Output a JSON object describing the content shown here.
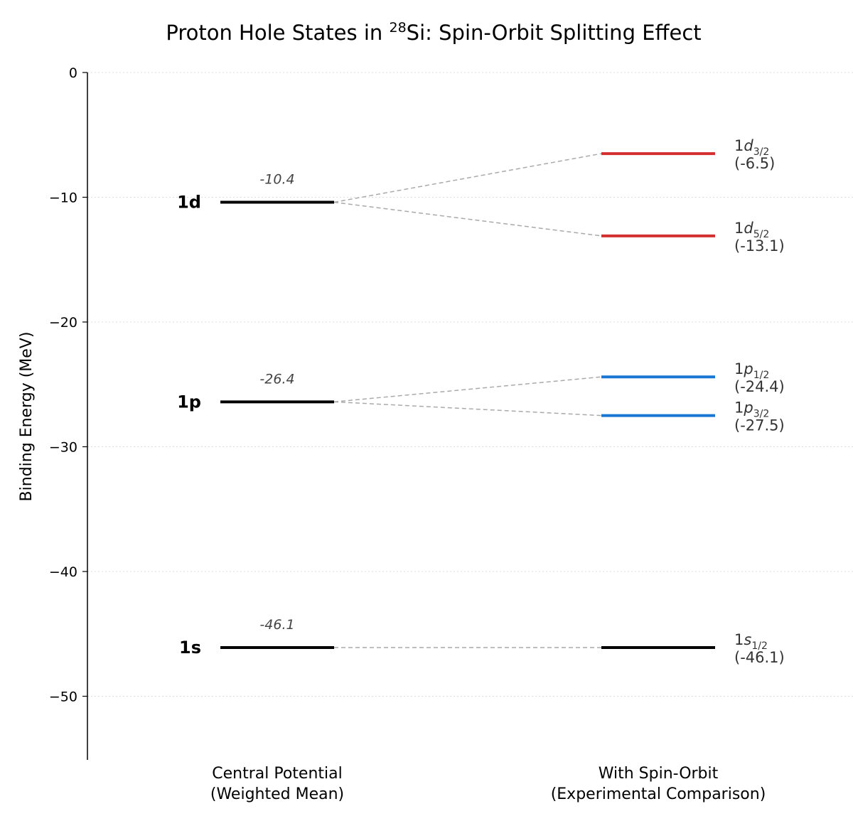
{
  "chart_data": {
    "type": "level-diagram",
    "title_prefix": "Proton Hole States in ",
    "title_superscript": "28",
    "title_suffix": "Si: Spin-Orbit Splitting Effect",
    "ylabel": "Binding Energy (MeV)",
    "ylim": [
      -55,
      0
    ],
    "yticks": [
      0,
      -10,
      -20,
      -30,
      -40,
      -50
    ],
    "ytick_labels": [
      "0",
      "−10",
      "−20",
      "−30",
      "−40",
      "−50"
    ],
    "grid": true,
    "columns": [
      {
        "line1": "Central Potential",
        "line2": "(Weighted Mean)"
      },
      {
        "line1": "With Spin-Orbit",
        "line2": "(Experimental Comparison)"
      }
    ],
    "central_levels": [
      {
        "name": "1d",
        "energy": -10.4,
        "value_label": "-10.4",
        "color": "#000000"
      },
      {
        "name": "1p",
        "energy": -26.4,
        "value_label": "-26.4",
        "color": "#000000"
      },
      {
        "name": "1s",
        "energy": -46.1,
        "value_label": "-46.1",
        "color": "#000000"
      }
    ],
    "split_levels": [
      {
        "parent": "1d",
        "prefix": "1",
        "letter": "d",
        "subscript": "3/2",
        "energy": -6.5,
        "value_label": "(-6.5)",
        "color": "#d32f2f"
      },
      {
        "parent": "1d",
        "prefix": "1",
        "letter": "d",
        "subscript": "5/2",
        "energy": -13.1,
        "value_label": "(-13.1)",
        "color": "#d32f2f"
      },
      {
        "parent": "1p",
        "prefix": "1",
        "letter": "p",
        "subscript": "1/2",
        "energy": -24.4,
        "value_label": "(-24.4)",
        "color": "#1976d2"
      },
      {
        "parent": "1p",
        "prefix": "1",
        "letter": "p",
        "subscript": "3/2",
        "energy": -27.5,
        "value_label": "(-27.5)",
        "color": "#1976d2"
      },
      {
        "parent": "1s",
        "prefix": "1",
        "letter": "s",
        "subscript": "1/2",
        "energy": -46.1,
        "value_label": "(-46.1)",
        "color": "#000000"
      }
    ],
    "connector_color": "#aaaaaa",
    "grid_color": "#dddddd"
  }
}
